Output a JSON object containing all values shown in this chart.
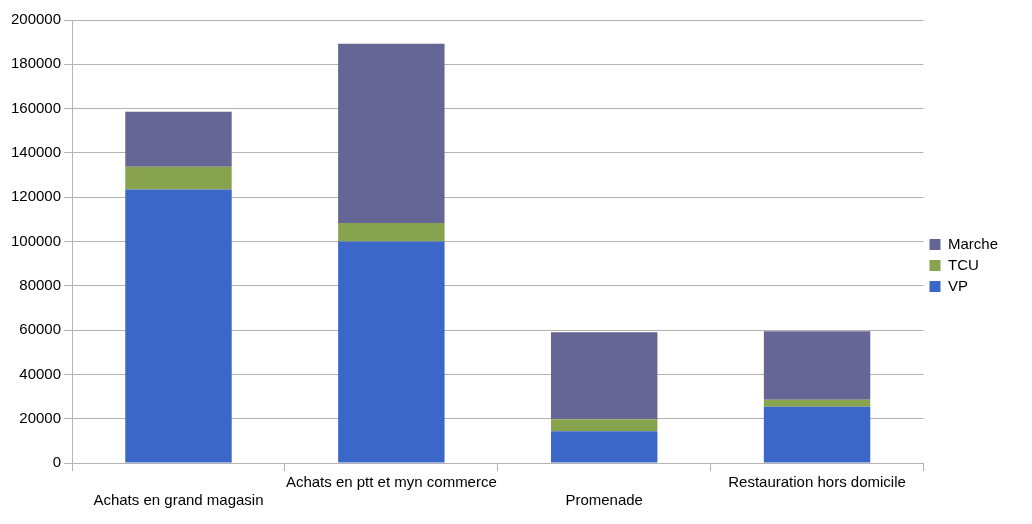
{
  "chart_data": {
    "type": "bar",
    "stacked": true,
    "categories": [
      "Achats en grand magasin",
      "Achats en ptt et myn commerce",
      "Promenade",
      "Restauration hors domicile"
    ],
    "series": [
      {
        "name": "VP",
        "color": "#3a67c8",
        "values": [
          123500,
          100000,
          14300,
          25400
        ]
      },
      {
        "name": "TCU",
        "color": "#88a34e",
        "values": [
          10200,
          8300,
          5500,
          3200
        ]
      },
      {
        "name": "Marche",
        "color": "#656596",
        "values": [
          24900,
          81000,
          39200,
          30900
        ]
      }
    ],
    "ylim": [
      0,
      200000
    ],
    "yticks": [
      0,
      20000,
      40000,
      60000,
      80000,
      100000,
      120000,
      140000,
      160000,
      180000,
      200000
    ],
    "grid": "y",
    "legend": "right"
  }
}
